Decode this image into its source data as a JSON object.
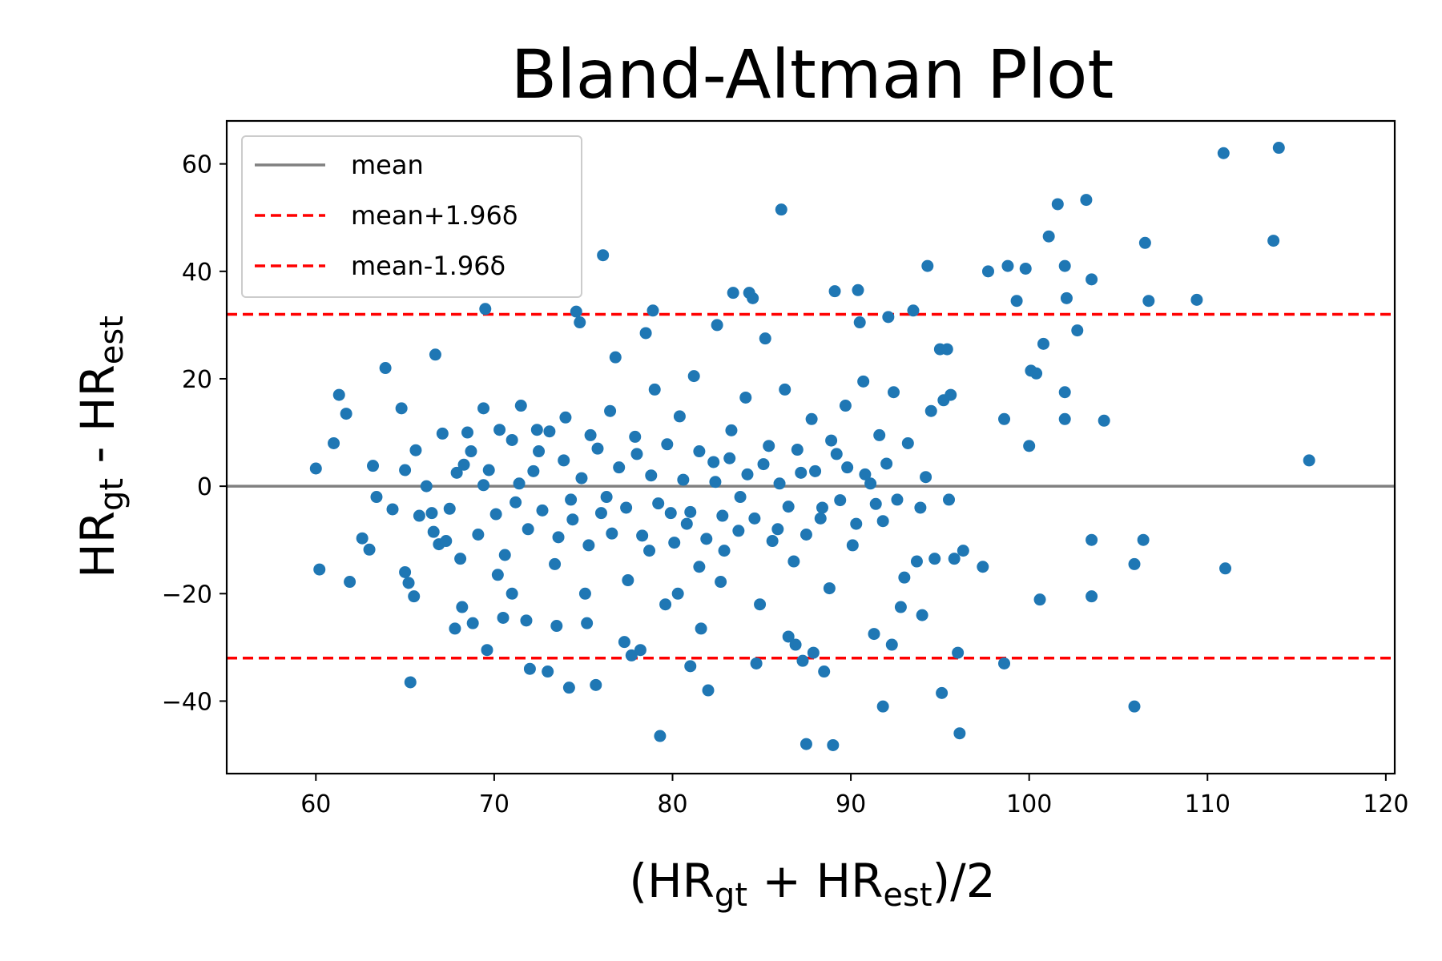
{
  "chart_data": {
    "type": "scatter",
    "title": "Bland-Altman Plot",
    "xlabel": {
      "parts": [
        {
          "t": "(HR"
        },
        {
          "t": "gt",
          "sub": true
        },
        {
          "t": " + HR"
        },
        {
          "t": "est",
          "sub": true
        },
        {
          "t": ")/2"
        }
      ]
    },
    "ylabel": {
      "parts": [
        {
          "t": "HR"
        },
        {
          "t": "gt",
          "sub": true
        },
        {
          "t": " - HR"
        },
        {
          "t": "est",
          "sub": true
        }
      ]
    },
    "xlim": [
      55,
      120.5
    ],
    "ylim": [
      -53.5,
      68
    ],
    "xticks": [
      60,
      70,
      80,
      90,
      100,
      110,
      120
    ],
    "yticks": [
      60,
      40,
      20,
      0,
      -20,
      -40
    ],
    "ytick_labels": [
      "60",
      "40",
      "20",
      "0",
      "−20",
      "−40"
    ],
    "grid": false,
    "legend_position": "top-left",
    "marker_color": "#1f77b4",
    "reference_lines": [
      {
        "name": "mean",
        "y": 0,
        "color": "#808080",
        "style": "solid"
      },
      {
        "name": "mean+1.96δ",
        "y": 32,
        "color": "#ff0000",
        "style": "dashed"
      },
      {
        "name": "mean-1.96δ",
        "y": -32,
        "color": "#ff0000",
        "style": "dashed"
      }
    ],
    "points": [
      [
        60,
        3.3
      ],
      [
        60.2,
        -15.5
      ],
      [
        61,
        8
      ],
      [
        61.3,
        17
      ],
      [
        61.7,
        13.5
      ],
      [
        61.9,
        -17.8
      ],
      [
        62.6,
        -9.7
      ],
      [
        63,
        -11.8
      ],
      [
        63.2,
        3.8
      ],
      [
        63.4,
        -2
      ],
      [
        63.9,
        22
      ],
      [
        64.3,
        -4.3
      ],
      [
        64.8,
        14.5
      ],
      [
        65,
        -16
      ],
      [
        65,
        3
      ],
      [
        65.2,
        -18
      ],
      [
        65.3,
        -36.5
      ],
      [
        65.5,
        -20.5
      ],
      [
        65.6,
        6.7
      ],
      [
        66.5,
        -5
      ],
      [
        66.7,
        24.5
      ],
      [
        66.9,
        -10.8
      ],
      [
        67.3,
        -10.2
      ],
      [
        67.8,
        -26.5
      ],
      [
        68.2,
        -22.5
      ],
      [
        68.5,
        10
      ],
      [
        68.8,
        -25.5
      ],
      [
        69.4,
        14.5
      ],
      [
        69.6,
        -30.5
      ],
      [
        69.5,
        33
      ],
      [
        70.2,
        -16.5
      ],
      [
        70.5,
        -24.5
      ],
      [
        71,
        -20
      ],
      [
        71.5,
        15
      ],
      [
        71.8,
        -25
      ],
      [
        72,
        -34
      ],
      [
        72.4,
        10.5
      ],
      [
        73,
        -34.5
      ],
      [
        73.5,
        -26
      ],
      [
        74.2,
        -37.5
      ],
      [
        74.6,
        32.5
      ],
      [
        74.8,
        30.5
      ],
      [
        75.2,
        -25.5
      ],
      [
        75.7,
        -37
      ],
      [
        76.1,
        43
      ],
      [
        76.8,
        24
      ],
      [
        77.3,
        -29
      ],
      [
        77.7,
        -31.5
      ],
      [
        78.2,
        -30.5
      ],
      [
        78.5,
        28.5
      ],
      [
        78.9,
        32.7
      ],
      [
        79.3,
        -46.5
      ],
      [
        79.9,
        -5
      ],
      [
        80.3,
        -20
      ],
      [
        81,
        -33.5
      ],
      [
        81.5,
        -15
      ],
      [
        82,
        -38
      ],
      [
        82.5,
        30
      ],
      [
        82.9,
        -12
      ],
      [
        83.4,
        36
      ],
      [
        84.3,
        36
      ],
      [
        84.5,
        35
      ],
      [
        84.7,
        -33
      ],
      [
        85.2,
        27.5
      ],
      [
        86.1,
        51.5
      ],
      [
        86.5,
        -28
      ],
      [
        86.9,
        -29.5
      ],
      [
        87.3,
        -32.5
      ],
      [
        87.5,
        -48
      ],
      [
        87.9,
        -31
      ],
      [
        88.5,
        -34.5
      ],
      [
        89,
        -48.2
      ],
      [
        89.1,
        36.3
      ],
      [
        90.4,
        36.5
      ],
      [
        90.5,
        30.5
      ],
      [
        91.3,
        -27.5
      ],
      [
        91.8,
        -41
      ],
      [
        92.1,
        31.5
      ],
      [
        92.3,
        -29.5
      ],
      [
        93,
        -17
      ],
      [
        93.5,
        32.7
      ],
      [
        94,
        -24
      ],
      [
        94.3,
        41
      ],
      [
        94.5,
        14
      ],
      [
        95,
        25.5
      ],
      [
        95.1,
        -38.5
      ],
      [
        95.4,
        25.5
      ],
      [
        95.6,
        17
      ],
      [
        96,
        -31
      ],
      [
        96.1,
        -46
      ],
      [
        96.3,
        -12
      ],
      [
        97.4,
        -15
      ],
      [
        97.7,
        40
      ],
      [
        98.6,
        -33
      ],
      [
        98.6,
        12.5
      ],
      [
        98.8,
        41
      ],
      [
        99.3,
        34.5
      ],
      [
        99.8,
        40.5
      ],
      [
        100,
        7.5
      ],
      [
        100.1,
        21.5
      ],
      [
        100.4,
        21
      ],
      [
        100.6,
        -21.1
      ],
      [
        100.8,
        26.5
      ],
      [
        101.1,
        46.5
      ],
      [
        101.6,
        52.5
      ],
      [
        102,
        41
      ],
      [
        102,
        12.5
      ],
      [
        102,
        17.5
      ],
      [
        102.1,
        35
      ],
      [
        102.7,
        29
      ],
      [
        103.2,
        53.3
      ],
      [
        103.5,
        38.5
      ],
      [
        103.5,
        -10
      ],
      [
        103.5,
        -20.5
      ],
      [
        104.2,
        12.2
      ],
      [
        105.9,
        -14.5
      ],
      [
        105.9,
        -41
      ],
      [
        106.4,
        -10
      ],
      [
        106.5,
        45.3
      ],
      [
        106.7,
        34.5
      ],
      [
        109.4,
        34.7
      ],
      [
        110.9,
        62
      ],
      [
        111,
        -15.3
      ],
      [
        113.7,
        45.7
      ],
      [
        114,
        63
      ],
      [
        115.7,
        4.8
      ],
      [
        68.3,
        4
      ],
      [
        69.4,
        0.2
      ],
      [
        70.3,
        10.5
      ],
      [
        71.2,
        -3
      ],
      [
        72.5,
        6.5
      ],
      [
        73.4,
        -14.5
      ],
      [
        74,
        12.8
      ],
      [
        74.3,
        -2.5
      ],
      [
        75.1,
        -20
      ],
      [
        75.4,
        9.5
      ],
      [
        76,
        -5
      ],
      [
        76.5,
        14
      ],
      [
        77.5,
        -17.5
      ],
      [
        78,
        6
      ],
      [
        78.7,
        -12
      ],
      [
        79,
        18
      ],
      [
        79.6,
        -22
      ],
      [
        80.4,
        13
      ],
      [
        80.8,
        -7
      ],
      [
        81.2,
        20.5
      ],
      [
        81.6,
        -26.5
      ],
      [
        82.3,
        4.5
      ],
      [
        82.7,
        -17.8
      ],
      [
        83.3,
        10.4
      ],
      [
        83.8,
        -2
      ],
      [
        84.1,
        16.5
      ],
      [
        84.9,
        -22
      ],
      [
        85.4,
        7.5
      ],
      [
        85.9,
        -8
      ],
      [
        86.3,
        18
      ],
      [
        86.8,
        -14
      ],
      [
        87.2,
        2.5
      ],
      [
        87.8,
        12.5
      ],
      [
        88.3,
        -6
      ],
      [
        88.8,
        -19
      ],
      [
        89.2,
        6
      ],
      [
        89.7,
        15
      ],
      [
        90.1,
        -11
      ],
      [
        90.7,
        19.5
      ],
      [
        91.1,
        0.5
      ],
      [
        91.6,
        9.5
      ],
      [
        91.8,
        -6.5
      ],
      [
        92.4,
        17.5
      ],
      [
        92.8,
        -22.5
      ],
      [
        93.2,
        8
      ],
      [
        93.7,
        -14
      ],
      [
        93.9,
        -4
      ],
      [
        94.2,
        1.7
      ],
      [
        94.7,
        -13.5
      ],
      [
        95.2,
        16
      ],
      [
        95.5,
        -2.5
      ],
      [
        95.8,
        -13.5
      ],
      [
        65.8,
        -5.5
      ],
      [
        66.2,
        0
      ],
      [
        66.6,
        -8.5
      ],
      [
        67.1,
        9.8
      ],
      [
        67.5,
        -4.2
      ],
      [
        67.9,
        2.5
      ],
      [
        68.1,
        -13.5
      ],
      [
        68.7,
        6.5
      ],
      [
        69.1,
        -9
      ],
      [
        69.7,
        3
      ],
      [
        70.1,
        -5.2
      ],
      [
        70.6,
        -12.8
      ],
      [
        71,
        8.6
      ],
      [
        71.4,
        0.5
      ],
      [
        71.9,
        -8
      ],
      [
        72.2,
        2.8
      ],
      [
        72.7,
        -4.5
      ],
      [
        73.1,
        10.2
      ],
      [
        73.6,
        -9.5
      ],
      [
        73.9,
        4.8
      ],
      [
        74.4,
        -6.2
      ],
      [
        74.9,
        1.5
      ],
      [
        75.3,
        -11
      ],
      [
        75.8,
        7
      ],
      [
        76.3,
        -2
      ],
      [
        76.6,
        -8.8
      ],
      [
        77,
        3.5
      ],
      [
        77.4,
        -4
      ],
      [
        77.9,
        9.2
      ],
      [
        78.3,
        -9.2
      ],
      [
        78.8,
        2
      ],
      [
        79.2,
        -3.2
      ],
      [
        79.7,
        7.8
      ],
      [
        80.1,
        -10.5
      ],
      [
        80.6,
        1.2
      ],
      [
        81,
        -4.8
      ],
      [
        81.5,
        6.5
      ],
      [
        81.9,
        -9.8
      ],
      [
        82.4,
        0.8
      ],
      [
        82.8,
        -5.5
      ],
      [
        83.2,
        5.2
      ],
      [
        83.7,
        -8.3
      ],
      [
        84.2,
        2.2
      ],
      [
        84.6,
        -6
      ],
      [
        85.1,
        4.1
      ],
      [
        85.6,
        -10.2
      ],
      [
        86,
        0.5
      ],
      [
        86.5,
        -3.8
      ],
      [
        87,
        6.8
      ],
      [
        87.5,
        -9
      ],
      [
        88,
        2.8
      ],
      [
        88.4,
        -4
      ],
      [
        88.9,
        8.5
      ],
      [
        89.4,
        -2.6
      ],
      [
        89.8,
        3.5
      ],
      [
        90.3,
        -7
      ],
      [
        90.8,
        2.2
      ],
      [
        91.4,
        -3.3
      ],
      [
        92,
        4.2
      ],
      [
        92.6,
        -2.5
      ]
    ]
  }
}
